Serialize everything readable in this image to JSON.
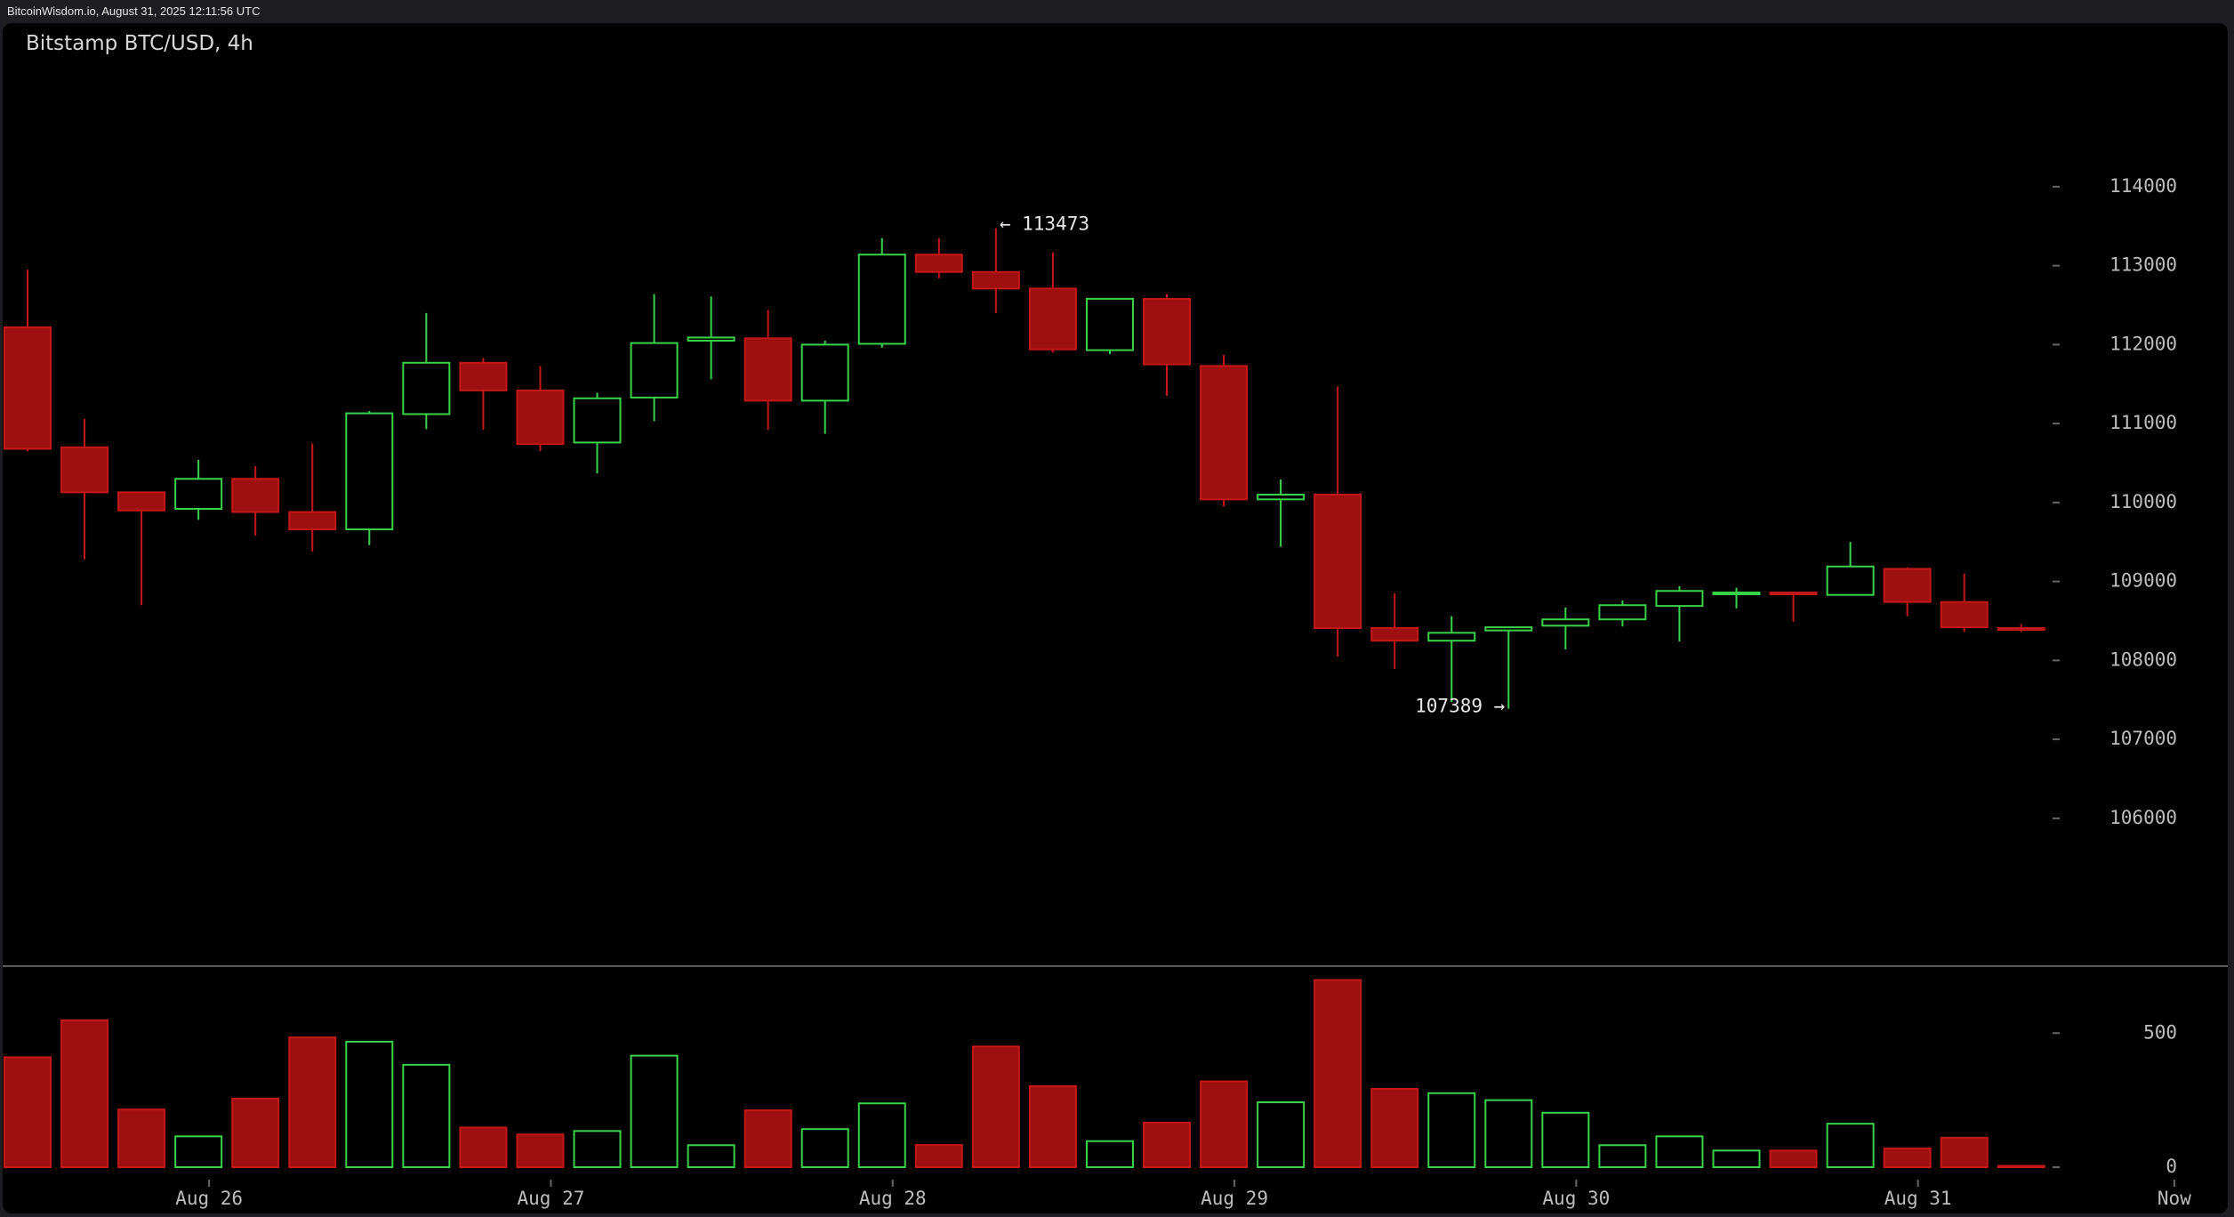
{
  "source": "BitcoinWisdom.io, August 31, 2025 12:11:56 UTC",
  "chart_data": {
    "type": "candlestick",
    "title": "Bitstamp BTC/USD, 4h",
    "colors": {
      "up": "#39d34a",
      "down": "#9e1010",
      "down_edge": "#c41717",
      "axis_text": "#bdbdbd",
      "background": "#000000"
    },
    "price_axis": {
      "ticks": [
        114000,
        113000,
        112000,
        111000,
        110000,
        109000,
        108000,
        107000,
        106000
      ],
      "range": [
        105300,
        114900
      ]
    },
    "volume_axis": {
      "ticks": [
        500,
        0
      ],
      "range": [
        0,
        700
      ]
    },
    "x_labels": [
      {
        "label": "Aug 26",
        "index": 3
      },
      {
        "label": "Aug 27",
        "index": 9
      },
      {
        "label": "Aug 28",
        "index": 15
      },
      {
        "label": "Aug 29",
        "index": 21
      },
      {
        "label": "Aug 30",
        "index": 27
      },
      {
        "label": "Aug 31",
        "index": 33
      },
      {
        "label": "Now",
        "index": 37.5
      }
    ],
    "annotations": {
      "high_label": "← 113473",
      "low_label": "107389 →",
      "high_index": 17,
      "high_value": 113473,
      "low_index": 26,
      "low_value": 107389
    },
    "candles": [
      {
        "o": 112220,
        "h": 112950,
        "l": 110650,
        "c": 110680,
        "v": 410
      },
      {
        "o": 110700,
        "h": 111060,
        "l": 109280,
        "c": 110130,
        "v": 548
      },
      {
        "o": 110130,
        "h": 110130,
        "l": 108700,
        "c": 109900,
        "v": 215
      },
      {
        "o": 109920,
        "h": 110540,
        "l": 109780,
        "c": 110300,
        "v": 115
      },
      {
        "o": 110300,
        "h": 110460,
        "l": 109580,
        "c": 109880,
        "v": 256
      },
      {
        "o": 109880,
        "h": 110750,
        "l": 109380,
        "c": 109660,
        "v": 484
      },
      {
        "o": 109660,
        "h": 111160,
        "l": 109460,
        "c": 111130,
        "v": 468
      },
      {
        "o": 111120,
        "h": 112400,
        "l": 110930,
        "c": 111770,
        "v": 382
      },
      {
        "o": 111770,
        "h": 111830,
        "l": 110920,
        "c": 111420,
        "v": 148
      },
      {
        "o": 111420,
        "h": 111730,
        "l": 110650,
        "c": 110740,
        "v": 122
      },
      {
        "o": 110760,
        "h": 111390,
        "l": 110370,
        "c": 111320,
        "v": 135
      },
      {
        "o": 111330,
        "h": 112640,
        "l": 111030,
        "c": 112020,
        "v": 416
      },
      {
        "o": 112050,
        "h": 112610,
        "l": 111560,
        "c": 112090,
        "v": 82
      },
      {
        "o": 112080,
        "h": 112440,
        "l": 110920,
        "c": 111290,
        "v": 212
      },
      {
        "o": 111290,
        "h": 112050,
        "l": 110870,
        "c": 112000,
        "v": 142
      },
      {
        "o": 112010,
        "h": 113350,
        "l": 111960,
        "c": 113140,
        "v": 238
      },
      {
        "o": 113140,
        "h": 113350,
        "l": 112840,
        "c": 112920,
        "v": 83
      },
      {
        "o": 112920,
        "h": 113473,
        "l": 112400,
        "c": 112710,
        "v": 450
      },
      {
        "o": 112710,
        "h": 113170,
        "l": 111900,
        "c": 111940,
        "v": 302
      },
      {
        "o": 111930,
        "h": 112580,
        "l": 111880,
        "c": 112580,
        "v": 97
      },
      {
        "o": 112580,
        "h": 112640,
        "l": 111350,
        "c": 111750,
        "v": 166
      },
      {
        "o": 111730,
        "h": 111870,
        "l": 109950,
        "c": 110040,
        "v": 320
      },
      {
        "o": 110040,
        "h": 110290,
        "l": 109440,
        "c": 110100,
        "v": 242
      },
      {
        "o": 110100,
        "h": 111470,
        "l": 108050,
        "c": 108410,
        "v": 698
      },
      {
        "o": 108410,
        "h": 108850,
        "l": 107890,
        "c": 108250,
        "v": 292
      },
      {
        "o": 108250,
        "h": 108560,
        "l": 107470,
        "c": 108350,
        "v": 276
      },
      {
        "o": 108380,
        "h": 108430,
        "l": 107389,
        "c": 108420,
        "v": 250
      },
      {
        "o": 108440,
        "h": 108670,
        "l": 108140,
        "c": 108520,
        "v": 203
      },
      {
        "o": 108520,
        "h": 108760,
        "l": 108430,
        "c": 108700,
        "v": 82
      },
      {
        "o": 108690,
        "h": 108940,
        "l": 108240,
        "c": 108880,
        "v": 115
      },
      {
        "o": 108840,
        "h": 108920,
        "l": 108660,
        "c": 108860,
        "v": 62
      },
      {
        "o": 108860,
        "h": 108870,
        "l": 108490,
        "c": 108840,
        "v": 62
      },
      {
        "o": 108830,
        "h": 109500,
        "l": 108830,
        "c": 109190,
        "v": 162
      },
      {
        "o": 109160,
        "h": 109180,
        "l": 108560,
        "c": 108740,
        "v": 70
      },
      {
        "o": 108740,
        "h": 109100,
        "l": 108360,
        "c": 108420,
        "v": 110
      },
      {
        "o": 108410,
        "h": 108460,
        "l": 108360,
        "c": 108400,
        "v": 5
      }
    ]
  }
}
